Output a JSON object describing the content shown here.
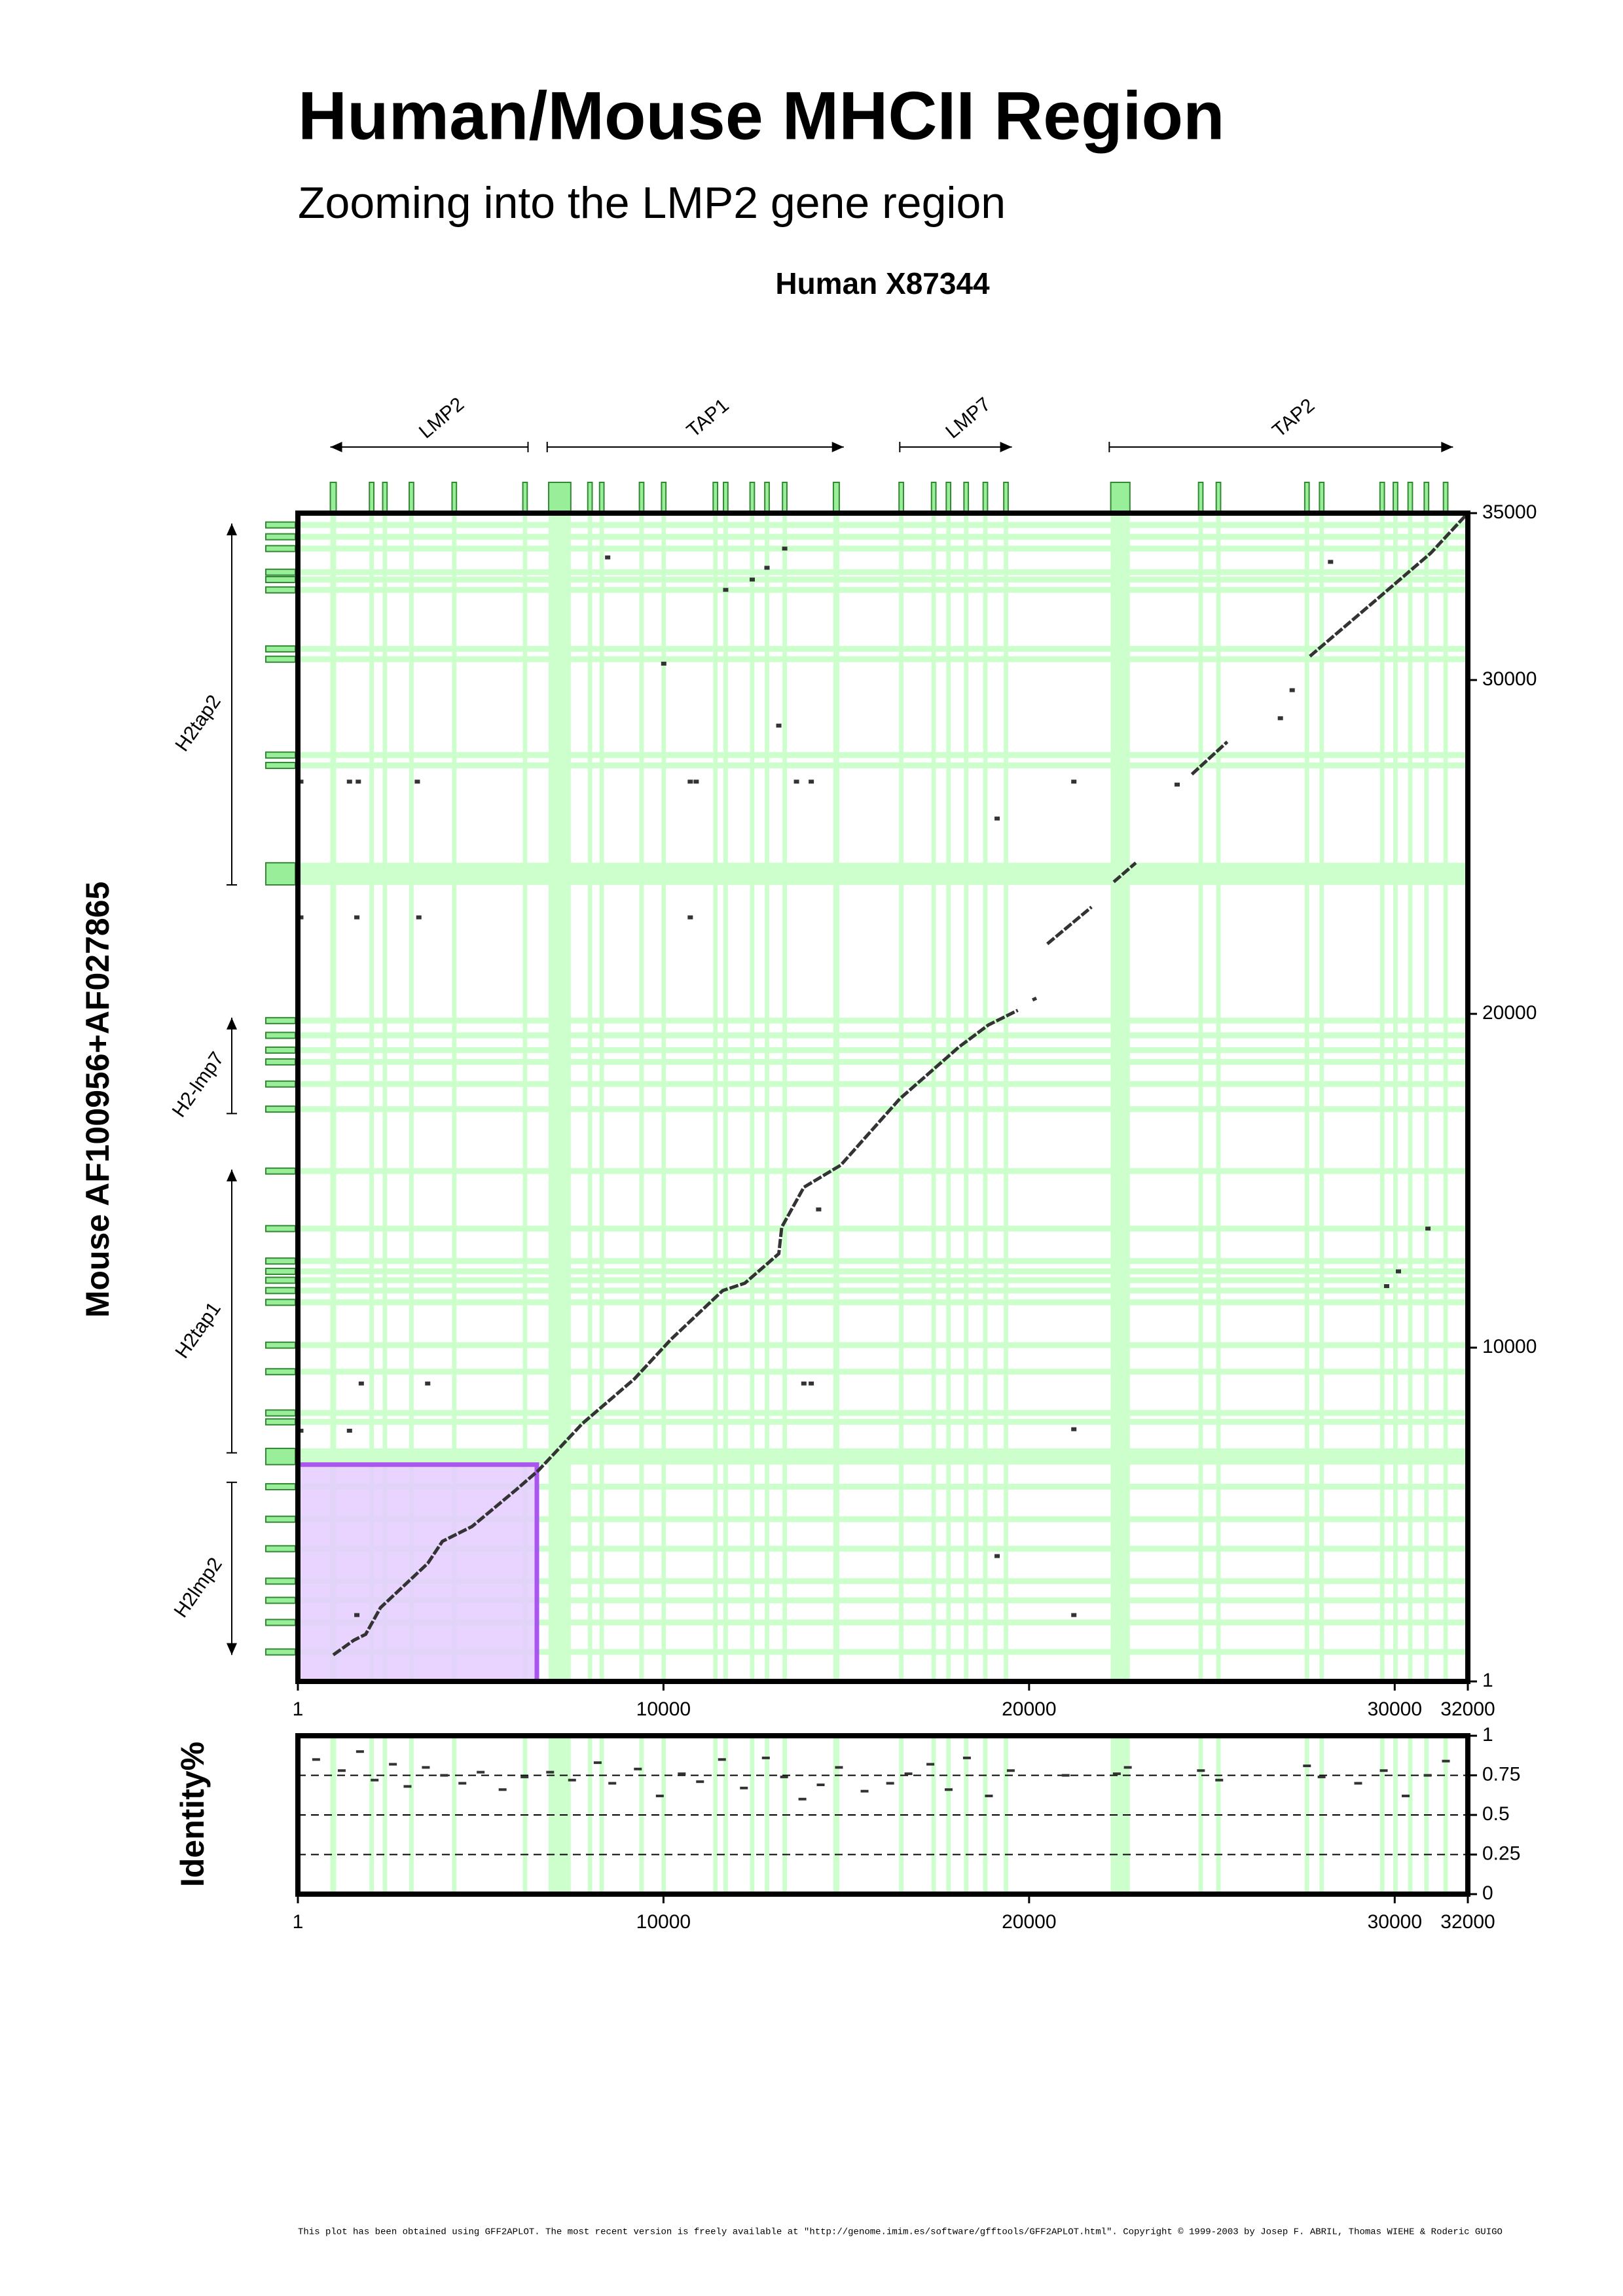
{
  "chart_data": [
    {
      "type": "dotplot",
      "title": "Human/Mouse MHCII Region",
      "subtitle": "Zooming into the LMP2 gene region",
      "xlabel": "Human X87344",
      "ylabel": "Mouse AF100956+AF027865",
      "xlim": [
        1,
        32000
      ],
      "ylim": [
        1,
        35000
      ],
      "xticks": [
        1,
        10000,
        20000,
        30000,
        32000
      ],
      "yticks": [
        1,
        10000,
        20000,
        30000,
        35000
      ],
      "exon_color": "#99ee99",
      "band_color": "#ccffcc",
      "x_features": [
        {
          "name": "LMP2",
          "start": 888,
          "end": 6295,
          "strand": "-"
        },
        {
          "name": "TAP1",
          "start": 6819,
          "end": 14930,
          "strand": "+"
        },
        {
          "name": "LMP7",
          "start": 16463,
          "end": 19529,
          "strand": "+"
        },
        {
          "name": "TAP2",
          "start": 22193,
          "end": 31594,
          "strand": "+"
        }
      ],
      "y_features": [
        {
          "name": "H2tap2",
          "start": 23863,
          "end": 34689,
          "strand": "+"
        },
        {
          "name": "H2-lmp7",
          "start": 17013,
          "end": 19886,
          "strand": "+"
        },
        {
          "name": "H2tap1",
          "start": 6849,
          "end": 15334,
          "strand": "+"
        },
        {
          "name": "H2lmp2",
          "start": 795,
          "end": 5966,
          "strand": "-"
        }
      ],
      "x_exons": [
        [
          888,
          1049
        ],
        [
          1957,
          2078
        ],
        [
          2320,
          2441
        ],
        [
          3046,
          3167
        ],
        [
          4217,
          4338
        ],
        [
          6153,
          6274
        ],
        [
          6860,
          7465
        ],
        [
          7929,
          8050
        ],
        [
          8252,
          8373
        ],
        [
          9341,
          9462
        ],
        [
          9946,
          10067
        ],
        [
          11359,
          11480
        ],
        [
          11641,
          11762
        ],
        [
          12367,
          12488
        ],
        [
          12771,
          12892
        ],
        [
          13255,
          13376
        ],
        [
          14647,
          14808
        ],
        [
          16443,
          16564
        ],
        [
          17330,
          17451
        ],
        [
          17734,
          17855
        ],
        [
          18218,
          18339
        ],
        [
          18743,
          18864
        ],
        [
          19307,
          19428
        ],
        [
          22233,
          22757
        ],
        [
          24634,
          24755
        ],
        [
          25118,
          25239
        ],
        [
          27539,
          27660
        ],
        [
          27942,
          28063
        ],
        [
          29597,
          29718
        ],
        [
          29960,
          30081
        ],
        [
          30364,
          30485
        ],
        [
          30807,
          30928
        ],
        [
          31332,
          31453
        ]
      ],
      "y_exons": [
        [
          34557,
          34733
        ],
        [
          34203,
          34380
        ],
        [
          33850,
          34026
        ],
        [
          33143,
          33319
        ],
        [
          32922,
          33098
        ],
        [
          32612,
          32789
        ],
        [
          30845,
          31021
        ],
        [
          30535,
          30712
        ],
        [
          27663,
          27840
        ],
        [
          27354,
          27530
        ],
        [
          23863,
          24525
        ],
        [
          19709,
          19886
        ],
        [
          19267,
          19444
        ],
        [
          18825,
          19002
        ],
        [
          18472,
          18648
        ],
        [
          17809,
          17985
        ],
        [
          17057,
          17234
        ],
        [
          15202,
          15378
        ],
        [
          13478,
          13655
        ],
        [
          12506,
          12683
        ],
        [
          12197,
          12374
        ],
        [
          11931,
          12108
        ],
        [
          11622,
          11799
        ],
        [
          11269,
          11445
        ],
        [
          9987,
          10163
        ],
        [
          9191,
          9368
        ],
        [
          7954,
          8131
        ],
        [
          7689,
          7866
        ],
        [
          6496,
          6982
        ],
        [
          5745,
          5922
        ],
        [
          4772,
          4949
        ],
        [
          3889,
          4065
        ],
        [
          2917,
          3093
        ],
        [
          2342,
          2519
        ],
        [
          1679,
          1856
        ],
        [
          795,
          972
        ]
      ],
      "highlight": {
        "xlim": [
          1,
          6537
        ],
        "ylim": [
          1,
          6496
        ],
        "color": "#e4ccff",
        "edge": "#aa55ee"
      },
      "alignment": {
        "color": "#333333",
        "x": [
          968,
          1533,
          1856,
          2260,
          3551,
          3954,
          4761,
          5972,
          6577,
          7788,
          9200,
          10209,
          11621,
          12226,
          13154,
          13235,
          13840,
          14849,
          16463,
          18077,
          18884,
          19691,
          null,
          20094,
          20200,
          null,
          20498,
          21708,
          null,
          22314,
          22919,
          null,
          24452,
          25421,
          null,
          27680,
          29577,
          30989,
          31990
        ],
        "y": [
          795,
          1237,
          1414,
          2210,
          3535,
          4198,
          4640,
          5745,
          6319,
          7733,
          9059,
          10252,
          11710,
          11931,
          12815,
          13611,
          14804,
          15467,
          17455,
          19002,
          19665,
          20106,
          null,
          20416,
          20470,
          null,
          22095,
          23200,
          null,
          23951,
          24525,
          null,
          27177,
          28149,
          null,
          30712,
          32480,
          33805,
          34990
        ]
      },
      "hits": {
        "color": "#333333",
        "x": [
          8474,
          10007,
          11702,
          12428,
          12831,
          13316,
          13154,
          13638,
          14042,
          10733,
          10895,
          81,
          1412,
          1654,
          3268,
          81,
          1614,
          3309,
          10733,
          19126,
          21224,
          24049,
          26873,
          27196,
          28245,
          1735,
          3551,
          13840,
          14042,
          81,
          1412,
          21224,
          14244,
          29779,
          30102,
          30909,
          19126,
          21224,
          1614
        ],
        "y": [
          33673,
          30491,
          32701,
          33010,
          33363,
          33938,
          28635,
          26956,
          26956,
          26956,
          26956,
          26956,
          26956,
          26956,
          26956,
          22890,
          22890,
          22890,
          22890,
          25851,
          26956,
          26868,
          28856,
          29696,
          33540,
          8926,
          8926,
          8926,
          8926,
          7512,
          7512,
          7556,
          14141,
          11843,
          12285,
          13567,
          3756,
          1989,
          1989
        ]
      }
    },
    {
      "type": "identity",
      "ylabel": "Identity%",
      "xlim": [
        1,
        32000
      ],
      "ylim": [
        0,
        1
      ],
      "xticks": [
        1,
        10000,
        20000,
        30000,
        32000
      ],
      "yticks": [
        0,
        0.25,
        0.5,
        0.75,
        1
      ],
      "grid": true,
      "color": "#333333",
      "x": [
        500,
        1200,
        1700,
        2100,
        2600,
        3000,
        3500,
        4000,
        4500,
        5000,
        5600,
        6200,
        6900,
        7500,
        8200,
        8600,
        9300,
        9900,
        10500,
        11000,
        11600,
        12200,
        12800,
        13300,
        13800,
        14300,
        14800,
        15500,
        16200,
        16700,
        17300,
        17800,
        18300,
        18900,
        19500,
        21000,
        22400,
        22700,
        24700,
        25200,
        27600,
        28000,
        29000,
        29700,
        30300,
        30900,
        31400
      ],
      "values": [
        0.85,
        0.78,
        0.9,
        0.72,
        0.82,
        0.68,
        0.8,
        0.75,
        0.7,
        0.77,
        0.66,
        0.74,
        0.77,
        0.72,
        0.83,
        0.7,
        0.79,
        0.62,
        0.76,
        0.71,
        0.85,
        0.67,
        0.86,
        0.74,
        0.6,
        0.69,
        0.8,
        0.65,
        0.7,
        0.76,
        0.82,
        0.66,
        0.86,
        0.62,
        0.78,
        0.75,
        0.76,
        0.8,
        0.78,
        0.72,
        0.81,
        0.74,
        0.7,
        0.78,
        0.62,
        0.75,
        0.84
      ]
    }
  ],
  "footer": "This plot has been obtained using GFF2APLOT. The most recent version is freely available at \"http://genome.imim.es/software/gfftools/GFF2APLOT.html\". Copyright © 1999-2003 by Josep F. ABRIL, Thomas WIEHE & Roderic GUIGO"
}
